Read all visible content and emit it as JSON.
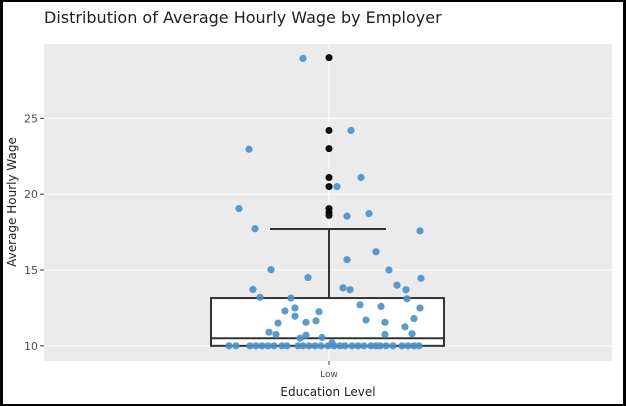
{
  "chart_data": {
    "type": "box-with-jitter",
    "title": "Distribution of Average Hourly Wage by Employer",
    "xlabel": "Education Level",
    "ylabel": "Average Hourly Wage",
    "categories": [
      "Low"
    ],
    "yticks": [
      10,
      15,
      20,
      25
    ],
    "ylim": [
      9.0,
      29.9
    ],
    "grid": true,
    "background": "#ebebeb",
    "point_color": "#4a90c4",
    "outlier_color": "#000000",
    "box": {
      "category": "Low",
      "q1": 10.0,
      "median": 10.5,
      "q3": 13.15,
      "whisker_low": 10.0,
      "whisker_high": 17.7
    },
    "outliers": [
      29.0,
      24.2,
      23.0,
      21.1,
      20.5,
      19.05,
      18.8,
      18.6
    ],
    "points": [
      {
        "x": 303,
        "v": 28.95
      },
      {
        "x": 351,
        "v": 24.2
      },
      {
        "x": 249,
        "v": 22.96
      },
      {
        "x": 361,
        "v": 21.1
      },
      {
        "x": 337,
        "v": 20.5
      },
      {
        "x": 239,
        "v": 19.05
      },
      {
        "x": 369,
        "v": 18.72
      },
      {
        "x": 347,
        "v": 18.55
      },
      {
        "x": 255,
        "v": 17.72
      },
      {
        "x": 420,
        "v": 17.58
      },
      {
        "x": 376,
        "v": 16.2
      },
      {
        "x": 347,
        "v": 15.68
      },
      {
        "x": 271,
        "v": 15.02
      },
      {
        "x": 389,
        "v": 15.0
      },
      {
        "x": 308,
        "v": 14.5
      },
      {
        "x": 421,
        "v": 14.45
      },
      {
        "x": 397,
        "v": 14.0
      },
      {
        "x": 253,
        "v": 13.72
      },
      {
        "x": 343,
        "v": 13.82
      },
      {
        "x": 350,
        "v": 13.7
      },
      {
        "x": 406,
        "v": 13.7
      },
      {
        "x": 260,
        "v": 13.2
      },
      {
        "x": 291,
        "v": 13.15
      },
      {
        "x": 407,
        "v": 13.1
      },
      {
        "x": 360,
        "v": 12.7
      },
      {
        "x": 381,
        "v": 12.6
      },
      {
        "x": 295,
        "v": 12.5
      },
      {
        "x": 420,
        "v": 12.5
      },
      {
        "x": 285,
        "v": 12.3
      },
      {
        "x": 319,
        "v": 12.25
      },
      {
        "x": 295,
        "v": 11.95
      },
      {
        "x": 366,
        "v": 11.7
      },
      {
        "x": 414,
        "v": 11.8
      },
      {
        "x": 278,
        "v": 11.5
      },
      {
        "x": 306,
        "v": 11.55
      },
      {
        "x": 316,
        "v": 11.65
      },
      {
        "x": 385,
        "v": 11.55
      },
      {
        "x": 405,
        "v": 11.25
      },
      {
        "x": 269,
        "v": 10.9
      },
      {
        "x": 276,
        "v": 10.75
      },
      {
        "x": 300,
        "v": 10.5
      },
      {
        "x": 306,
        "v": 10.7
      },
      {
        "x": 322,
        "v": 10.55
      },
      {
        "x": 385,
        "v": 10.75
      },
      {
        "x": 412,
        "v": 10.8
      },
      {
        "x": 332,
        "v": 10.2
      },
      {
        "x": 229,
        "v": 10.0
      },
      {
        "x": 236,
        "v": 10.0
      },
      {
        "x": 250,
        "v": 10.0
      },
      {
        "x": 256,
        "v": 10.0
      },
      {
        "x": 262,
        "v": 10.0
      },
      {
        "x": 268,
        "v": 10.0
      },
      {
        "x": 274,
        "v": 10.0
      },
      {
        "x": 282,
        "v": 10.0
      },
      {
        "x": 287,
        "v": 10.0
      },
      {
        "x": 298,
        "v": 10.0
      },
      {
        "x": 303,
        "v": 10.0
      },
      {
        "x": 309,
        "v": 10.0
      },
      {
        "x": 315,
        "v": 10.0
      },
      {
        "x": 321,
        "v": 10.0
      },
      {
        "x": 328,
        "v": 10.0
      },
      {
        "x": 334,
        "v": 10.0
      },
      {
        "x": 340,
        "v": 10.0
      },
      {
        "x": 345,
        "v": 10.0
      },
      {
        "x": 352,
        "v": 10.0
      },
      {
        "x": 358,
        "v": 10.0
      },
      {
        "x": 364,
        "v": 10.0
      },
      {
        "x": 371,
        "v": 10.0
      },
      {
        "x": 376,
        "v": 10.0
      },
      {
        "x": 380,
        "v": 10.0
      },
      {
        "x": 386,
        "v": 10.0
      },
      {
        "x": 393,
        "v": 10.0
      },
      {
        "x": 402,
        "v": 10.0
      },
      {
        "x": 408,
        "v": 10.0
      },
      {
        "x": 414,
        "v": 10.0
      },
      {
        "x": 419,
        "v": 10.0
      }
    ]
  }
}
